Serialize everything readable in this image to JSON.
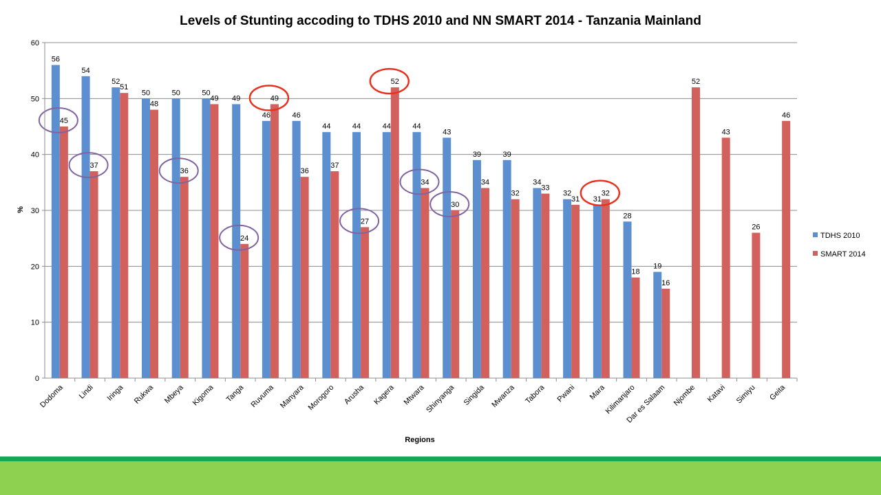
{
  "colors": {
    "series1": "#5b8fcf",
    "series2": "#d2605c",
    "circle_purple": "#8064a2",
    "circle_red": "#e8321e",
    "footer_line": "#13a858",
    "footer_band": "#8ed04f"
  },
  "chart_data": {
    "type": "bar",
    "title": "Levels of Stunting accoding to TDHS 2010 and  NN SMART 2014 - Tanzania Mainland",
    "xlabel": "Regions",
    "ylabel": "%",
    "ylim": [
      0,
      60
    ],
    "yticks": [
      0,
      10,
      20,
      30,
      40,
      50,
      60
    ],
    "grid": true,
    "legend_position": "right",
    "categories": [
      "Dodoma",
      "Lindi",
      "Iringa",
      "Rukwa",
      "Mbeya",
      "Kigoma",
      "Tanga",
      "Ruvuma",
      "Manyara",
      "Morogoro",
      "Arusha",
      "Kagera",
      "Mtwara",
      "Shinyanga",
      "Singida",
      "Mwanza",
      "Tabora",
      "Pwani",
      "Mara",
      "Kilimanjaro",
      "Dar es Salaam",
      "Njombe",
      "Katavi",
      "Simiyu",
      "Geita"
    ],
    "series": [
      {
        "name": "TDHS 2010",
        "values": [
          56,
          54,
          52,
          50,
          50,
          50,
          49,
          46,
          46,
          44,
          44,
          44,
          44,
          43,
          39,
          39,
          34,
          32,
          31,
          28,
          19,
          null,
          null,
          null,
          null
        ]
      },
      {
        "name": "SMART 2014",
        "values": [
          45,
          37,
          51,
          48,
          36,
          49,
          24,
          49,
          36,
          37,
          27,
          52,
          34,
          30,
          34,
          32,
          33,
          31,
          32,
          18,
          16,
          52,
          43,
          26,
          46
        ]
      }
    ],
    "annotations": {
      "circled_purple": [
        "Dodoma",
        "Lindi",
        "Mbeya",
        "Tanga",
        "Arusha",
        "Mtwara",
        "Shinyanga"
      ],
      "circled_red": [
        "Ruvuma",
        "Kagera",
        "Mara"
      ]
    }
  }
}
